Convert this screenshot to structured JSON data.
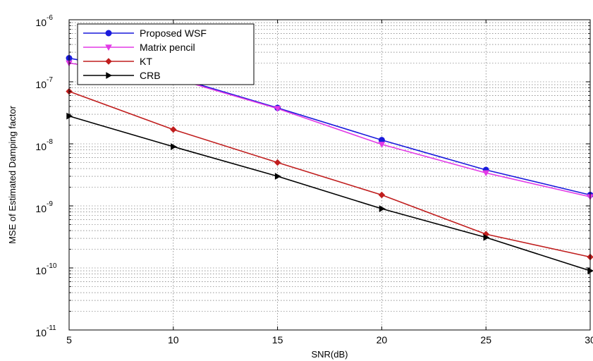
{
  "chart_data": {
    "type": "line",
    "xlabel": "SNR(dB)",
    "ylabel": "MSE of Estimated Damping factor",
    "xlim": [
      5,
      30
    ],
    "ylim": [
      1e-11,
      1e-06
    ],
    "yscale": "log",
    "x_ticks": [
      "5",
      "10",
      "15",
      "20",
      "25",
      "30"
    ],
    "y_ticks": [
      {
        "base": "10",
        "exp": "-6"
      },
      {
        "base": "10",
        "exp": "-7"
      },
      {
        "base": "10",
        "exp": "-8"
      },
      {
        "base": "10",
        "exp": "-9"
      },
      {
        "base": "10",
        "exp": "-10"
      },
      {
        "base": "10",
        "exp": "-11"
      }
    ],
    "grid": true,
    "legend_position": "top-left",
    "x": [
      5,
      10,
      15,
      20,
      25,
      30
    ],
    "series": [
      {
        "name": "Proposed WSF",
        "color": "#1a1adc",
        "marker": "circle",
        "values": [
          2.4e-07,
          1.2e-07,
          3.8e-08,
          1.15e-08,
          3.8e-09,
          1.5e-09
        ]
      },
      {
        "name": "Matrix pencil",
        "color": "#e23ae6",
        "marker": "triangle-down",
        "values": [
          2e-07,
          1.15e-07,
          3.7e-08,
          9.8e-09,
          3.4e-09,
          1.4e-09
        ]
      },
      {
        "name": "KT",
        "color": "#c01e1e",
        "marker": "diamond",
        "values": [
          7e-08,
          1.7e-08,
          5e-09,
          1.5e-09,
          3.5e-10,
          1.5e-10
        ]
      },
      {
        "name": "CRB",
        "color": "#000000",
        "marker": "triangle-right",
        "values": [
          2.8e-08,
          9e-09,
          3e-09,
          9e-10,
          3.1e-10,
          9e-11
        ]
      }
    ]
  }
}
